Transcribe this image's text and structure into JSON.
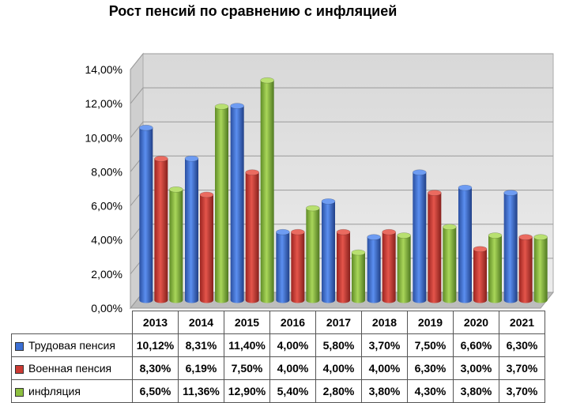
{
  "chart_data": {
    "type": "bar",
    "title": "Рост пенсий по сравнению с инфляцией",
    "categories": [
      "2013",
      "2014",
      "2015",
      "2016",
      "2017",
      "2018",
      "2019",
      "2020",
      "2021"
    ],
    "series": [
      {
        "name": "Трудовая пенсия",
        "color": "#3b6fd4",
        "values": [
          10.12,
          8.31,
          11.4,
          4.0,
          5.8,
          3.7,
          7.5,
          6.6,
          6.3
        ],
        "labels": [
          "10,12%",
          "8,31%",
          "11,40%",
          "4,00%",
          "5,80%",
          "3,70%",
          "7,50%",
          "6,60%",
          "6,30%"
        ]
      },
      {
        "name": "Военная пенсия",
        "color": "#cc3a33",
        "values": [
          8.3,
          6.19,
          7.5,
          4.0,
          4.0,
          4.0,
          6.3,
          3.0,
          3.7
        ],
        "labels": [
          "8,30%",
          "6,19%",
          "7,50%",
          "4,00%",
          "4,00%",
          "4,00%",
          "6,30%",
          "3,00%",
          "3,70%"
        ]
      },
      {
        "name": "инфляция",
        "color": "#8cbf3f",
        "values": [
          6.5,
          11.36,
          12.9,
          5.4,
          2.8,
          3.8,
          4.3,
          3.8,
          3.7
        ],
        "labels": [
          "6,50%",
          "11,36%",
          "12,90%",
          "5,40%",
          "2,80%",
          "3,80%",
          "4,30%",
          "3,80%",
          "3,70%"
        ]
      }
    ],
    "y_ticks": [
      "0,00%",
      "2,00%",
      "4,00%",
      "6,00%",
      "8,00%",
      "10,00%",
      "12,00%",
      "14,00%"
    ],
    "ylim": [
      0,
      14
    ],
    "grid": true,
    "legend": "data table below chart"
  }
}
